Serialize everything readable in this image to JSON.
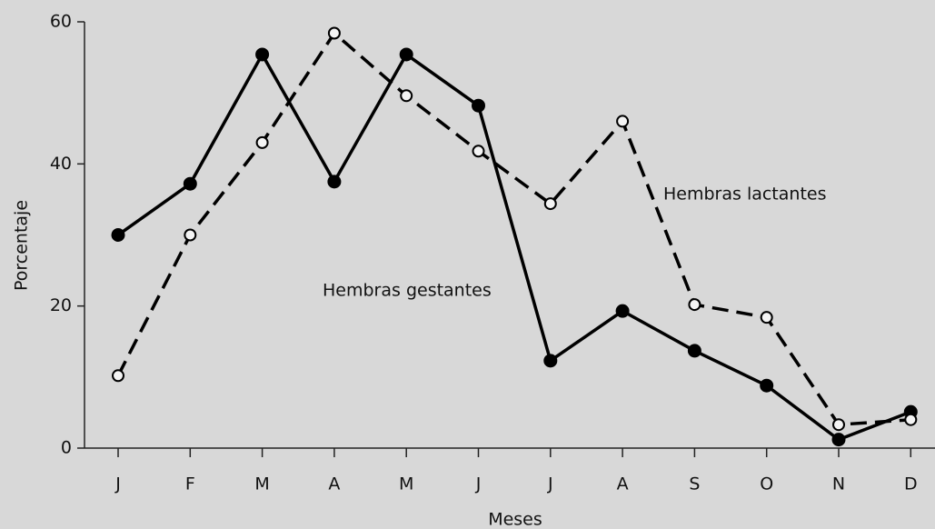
{
  "chart_data": {
    "type": "line",
    "x_label": "Meses",
    "y_label": "Porcentaje",
    "categories": [
      "J",
      "F",
      "M",
      "A",
      "M",
      "J",
      "J",
      "A",
      "S",
      "O",
      "N",
      "D"
    ],
    "series": [
      {
        "name": "Hembras gestantes",
        "color": "#000000",
        "style": "solid",
        "marker": "filled",
        "values": [
          30.0,
          37.2,
          55.4,
          37.5,
          55.4,
          48.2,
          12.3,
          19.3,
          13.7,
          8.8,
          1.2,
          5.1
        ]
      },
      {
        "name": "Hembras lactantes",
        "color": "#000000",
        "style": "dashed",
        "marker": "open",
        "values": [
          10.2,
          30.0,
          43.0,
          58.4,
          49.6,
          41.8,
          34.4,
          46.0,
          20.2,
          18.4,
          3.3,
          4.0
        ]
      }
    ],
    "ylim": [
      0,
      60
    ],
    "yticks": [
      0,
      20,
      40,
      60
    ],
    "grid": false
  }
}
